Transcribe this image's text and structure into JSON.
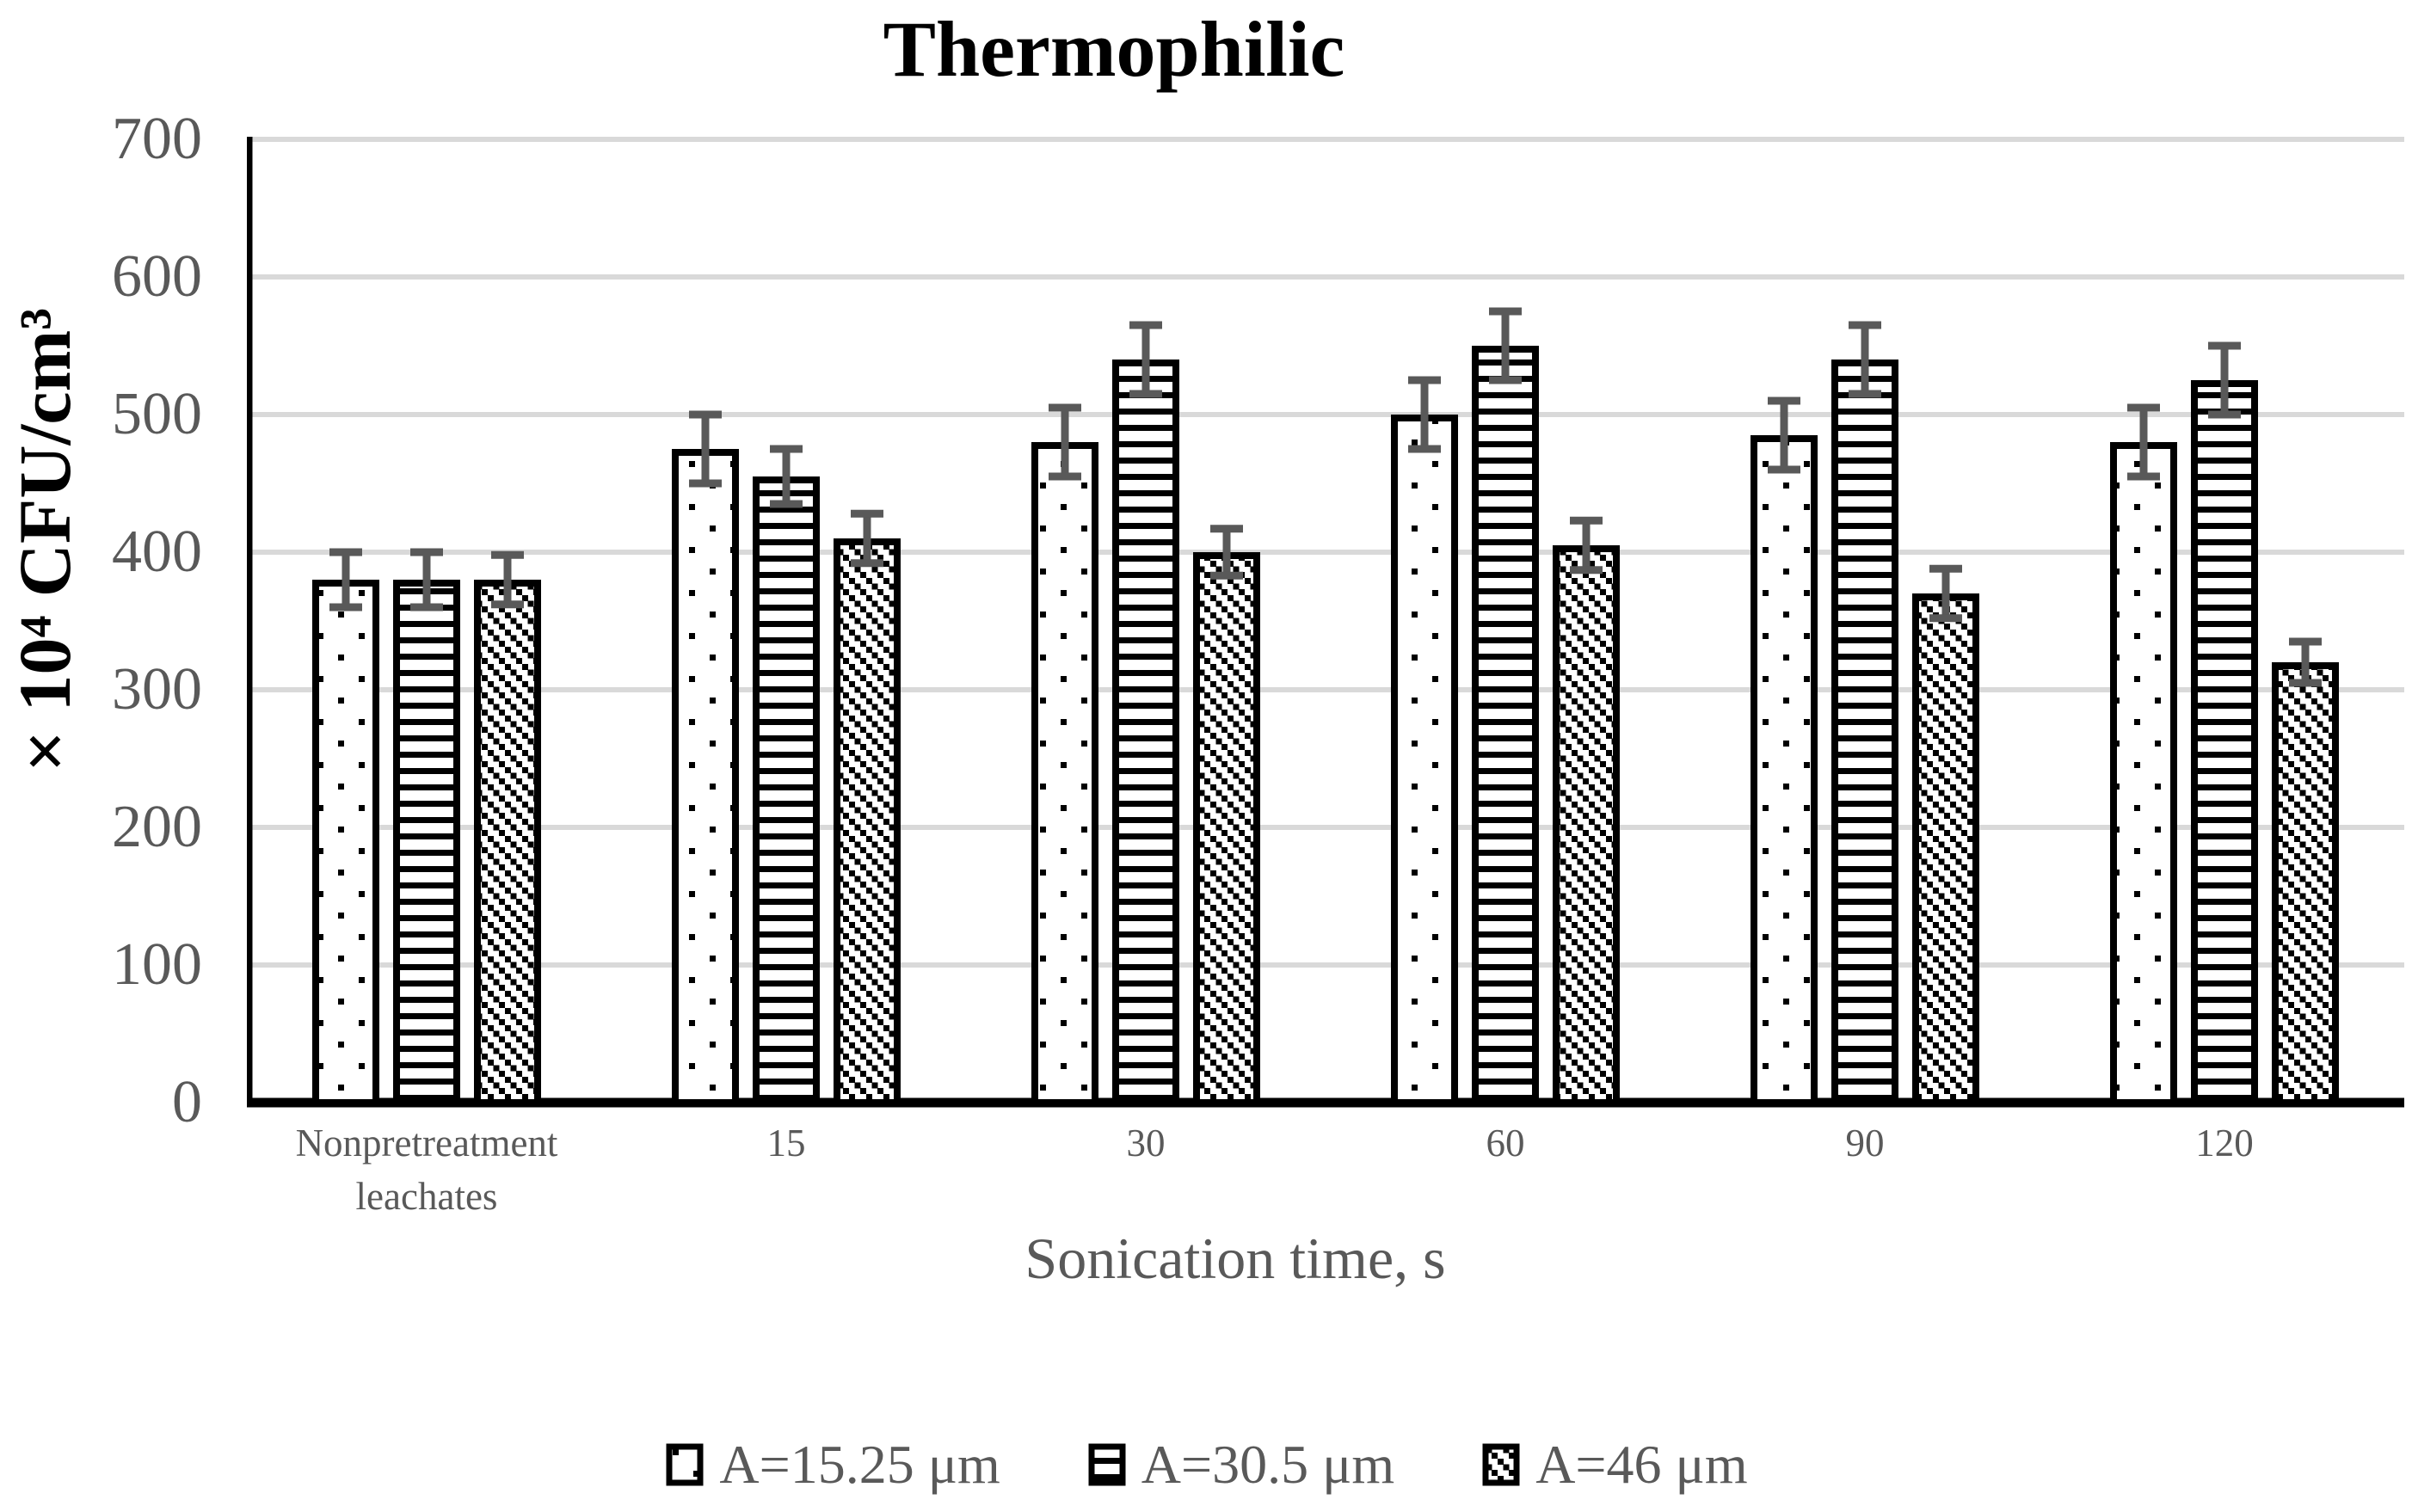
{
  "chart_data": {
    "type": "bar",
    "title": "Thermophilic",
    "xlabel": "Sonication time, s",
    "ylabel": "× 10⁴ CFU/cm³",
    "ylim": [
      0,
      700
    ],
    "yticks": [
      0,
      100,
      200,
      300,
      400,
      500,
      600,
      700
    ],
    "grid": true,
    "legend_position": "bottom",
    "categories": [
      "Nonpretreatment\nleachates",
      "15",
      "30",
      "60",
      "90",
      "120"
    ],
    "series": [
      {
        "name": "A=15.25 μm",
        "pattern": "dots",
        "values": [
          380,
          475,
          480,
          500,
          485,
          480
        ],
        "errors": [
          20,
          25,
          25,
          25,
          25,
          25
        ]
      },
      {
        "name": "A=30.5 μm",
        "pattern": "horizontal-lines",
        "values": [
          380,
          455,
          540,
          550,
          540,
          525
        ],
        "errors": [
          20,
          20,
          25,
          25,
          25,
          25
        ]
      },
      {
        "name": "A=46 μm",
        "pattern": "diagonal-dashes",
        "values": [
          380,
          410,
          400,
          405,
          370,
          320
        ],
        "errors": [
          18,
          18,
          17,
          18,
          18,
          15
        ]
      }
    ],
    "colors": {
      "background": "#ffffff",
      "bar_fill": "#ffffff",
      "bar_border": "#000000",
      "error_bar": "#595959",
      "gridline": "#d9d9d9",
      "axis_line": "#000000",
      "tick_text": "#595959",
      "title_text": "#000000"
    }
  }
}
